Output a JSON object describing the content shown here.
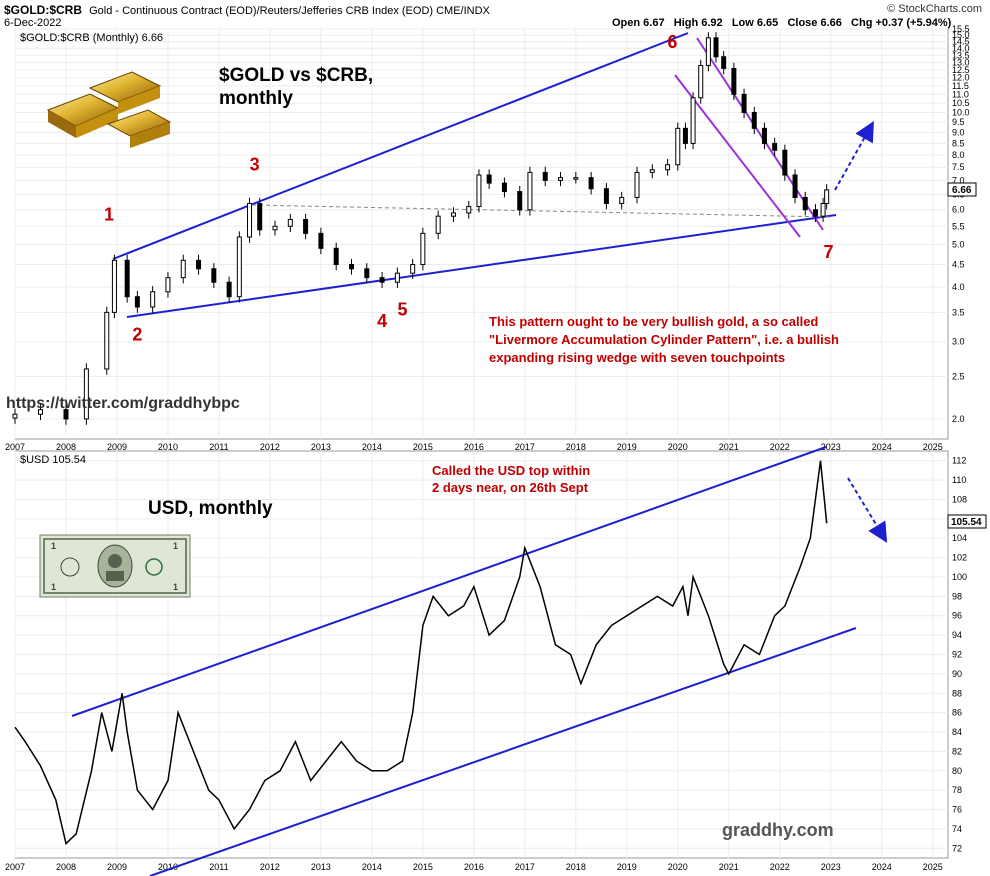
{
  "header": {
    "symbol": "$GOLD:$CRB",
    "description": "Gold - Continuous Contract (EOD)/Reuters/Jefferies CRB Index (EOD) CME/INDX",
    "date": "6-Dec-2022",
    "ohlc": "Open 6.67   High 6.92   Low 6.65   Close 6.66   Chg +0.37 (+5.94%)",
    "watermark": "© StockCharts.com"
  },
  "colors": {
    "trendline": "#1f1fd2",
    "channel": "#9b30d9",
    "annotation": "#c00000",
    "candle": "#000000",
    "price_line": "#000000",
    "arrow": "#1f1fd2"
  },
  "panel1": {
    "legend": "$GOLD:$CRB (Monthly) 6.66",
    "title_line1": "$GOLD vs $CRB,",
    "title_line2": "monthly",
    "last_value": "6.66",
    "touchpoints": [
      "1",
      "2",
      "3",
      "4",
      "5",
      "6",
      "7"
    ],
    "note": "This pattern ought to be very bullish gold, a so called \"Livermore Accumulation Cylinder Pattern\", i.e. a bullish expanding rising wedge with seven touchpoints",
    "link": "https://twitter.com/graddhybpc",
    "picture": "gold-bars"
  },
  "panel2": {
    "legend": "$USD 105.54",
    "title": "USD, monthly",
    "last_value": "105.54",
    "note_line1": "Called the USD top within",
    "note_line2": "2 days near, on 26th Sept",
    "footer": "graddhy.com",
    "picture": "dollar-bill"
  },
  "chart_data": [
    {
      "type": "candlestick",
      "title": "$GOLD vs $CRB, monthly",
      "y_scale": "log",
      "ylim": [
        1.8,
        15.5
      ],
      "y_ticks": [
        2.0,
        2.5,
        3.0,
        3.5,
        4.0,
        4.5,
        5.0,
        5.5,
        6.0,
        6.5,
        7.0,
        7.5,
        8.0,
        8.5,
        9.0,
        9.5,
        10.0,
        10.5,
        11.0,
        11.5,
        12.0,
        12.5,
        13.0,
        13.5,
        14.0,
        14.5,
        15.0,
        15.5
      ],
      "x_ticks": [
        "2007",
        "2008",
        "2009",
        "2010",
        "2011",
        "2012",
        "2013",
        "2014",
        "2015",
        "2016",
        "2017",
        "2018",
        "2019",
        "2020",
        "2021",
        "2022",
        "2023",
        "2024",
        "2025"
      ],
      "xlim": [
        2007.0,
        2025.3
      ],
      "grid": true,
      "series": [
        {
          "name": "$GOLD:$CRB",
          "x": [
            2007.0,
            2007.5,
            2008.0,
            2008.4,
            2008.8,
            2008.95,
            2009.2,
            2009.4,
            2009.7,
            2010.0,
            2010.3,
            2010.6,
            2010.9,
            2011.2,
            2011.4,
            2011.6,
            2011.8,
            2012.1,
            2012.4,
            2012.7,
            2013.0,
            2013.3,
            2013.6,
            2013.9,
            2014.2,
            2014.5,
            2014.8,
            2015.0,
            2015.3,
            2015.6,
            2015.9,
            2016.1,
            2016.3,
            2016.6,
            2016.9,
            2017.1,
            2017.4,
            2017.7,
            2018.0,
            2018.3,
            2018.6,
            2018.9,
            2019.2,
            2019.5,
            2019.8,
            2020.0,
            2020.15,
            2020.3,
            2020.45,
            2020.6,
            2020.75,
            2020.9,
            2021.1,
            2021.3,
            2021.5,
            2021.7,
            2021.9,
            2022.1,
            2022.3,
            2022.5,
            2022.7,
            2022.85,
            2022.92
          ],
          "values": [
            2.05,
            2.1,
            2.0,
            2.6,
            3.5,
            4.6,
            3.8,
            3.6,
            3.9,
            4.2,
            4.6,
            4.4,
            4.1,
            3.8,
            5.2,
            6.2,
            5.4,
            5.5,
            5.7,
            5.3,
            4.9,
            4.5,
            4.4,
            4.2,
            4.1,
            4.3,
            4.5,
            5.3,
            5.8,
            5.9,
            6.1,
            7.2,
            6.9,
            6.6,
            6.0,
            7.3,
            7.0,
            7.1,
            7.1,
            6.7,
            6.2,
            6.4,
            7.3,
            7.4,
            7.6,
            9.2,
            8.5,
            10.8,
            12.8,
            14.8,
            13.4,
            12.6,
            11.0,
            10.0,
            9.2,
            8.5,
            8.2,
            7.2,
            6.4,
            6.0,
            5.8,
            6.2,
            6.66
          ]
        }
      ],
      "annotations": [
        {
          "label": "1",
          "x": 2009.0,
          "value": 4.6
        },
        {
          "label": "2",
          "x": 2009.4,
          "value": 3.5
        },
        {
          "label": "3",
          "x": 2011.7,
          "value": 6.3
        },
        {
          "label": "4",
          "x": 2014.2,
          "value": 4.1
        },
        {
          "label": "5",
          "x": 2014.6,
          "value": 4.2
        },
        {
          "label": "6",
          "x": 2020.6,
          "value": 14.8
        },
        {
          "label": "7",
          "x": 2022.8,
          "value": 5.8
        }
      ]
    },
    {
      "type": "line",
      "title": "USD, monthly",
      "ylim": [
        71,
        113
      ],
      "y_ticks": [
        72,
        74,
        76,
        78,
        80,
        82,
        84,
        86,
        88,
        90,
        92,
        94,
        96,
        98,
        100,
        102,
        104,
        106,
        108,
        110,
        112
      ],
      "x_ticks": [
        "2007",
        "2008",
        "2009",
        "2010",
        "2011",
        "2012",
        "2013",
        "2014",
        "2015",
        "2016",
        "2017",
        "2018",
        "2019",
        "2020",
        "2021",
        "2022",
        "2023",
        "2024",
        "2025"
      ],
      "xlim": [
        2007.0,
        2025.3
      ],
      "grid": true,
      "series": [
        {
          "name": "$USD",
          "x": [
            2007.0,
            2007.2,
            2007.5,
            2007.8,
            2008.0,
            2008.2,
            2008.5,
            2008.7,
            2008.9,
            2009.1,
            2009.2,
            2009.4,
            2009.7,
            2010.0,
            2010.2,
            2010.5,
            2010.8,
            2011.0,
            2011.3,
            2011.6,
            2011.9,
            2012.2,
            2012.5,
            2012.8,
            2013.1,
            2013.4,
            2013.7,
            2014.0,
            2014.3,
            2014.6,
            2014.8,
            2015.0,
            2015.2,
            2015.5,
            2015.8,
            2016.0,
            2016.3,
            2016.6,
            2016.9,
            2017.0,
            2017.3,
            2017.6,
            2017.9,
            2018.1,
            2018.4,
            2018.7,
            2019.0,
            2019.3,
            2019.6,
            2019.9,
            2020.1,
            2020.2,
            2020.3,
            2020.6,
            2020.9,
            2021.0,
            2021.3,
            2021.6,
            2021.9,
            2022.1,
            2022.4,
            2022.6,
            2022.7,
            2022.8,
            2022.92
          ],
          "values": [
            84.5,
            83.0,
            80.5,
            77.0,
            72.5,
            73.5,
            80.0,
            86.0,
            82.0,
            88.0,
            84.0,
            78.0,
            76.0,
            79.0,
            86.0,
            82.0,
            78.0,
            77.0,
            74.0,
            76.0,
            79.0,
            80.0,
            83.0,
            79.0,
            81.0,
            83.0,
            81.0,
            80.0,
            80.0,
            81.0,
            86.0,
            95.0,
            98.0,
            96.0,
            97.0,
            99.0,
            94.0,
            95.5,
            100.0,
            103.0,
            99.0,
            93.0,
            92.0,
            89.0,
            93.0,
            95.0,
            96.0,
            97.0,
            98.0,
            97.0,
            99.0,
            96.0,
            100.0,
            96.0,
            91.0,
            90.0,
            93.0,
            92.0,
            96.0,
            97.0,
            101.0,
            104.0,
            108.0,
            112.0,
            105.54
          ]
        }
      ]
    }
  ]
}
